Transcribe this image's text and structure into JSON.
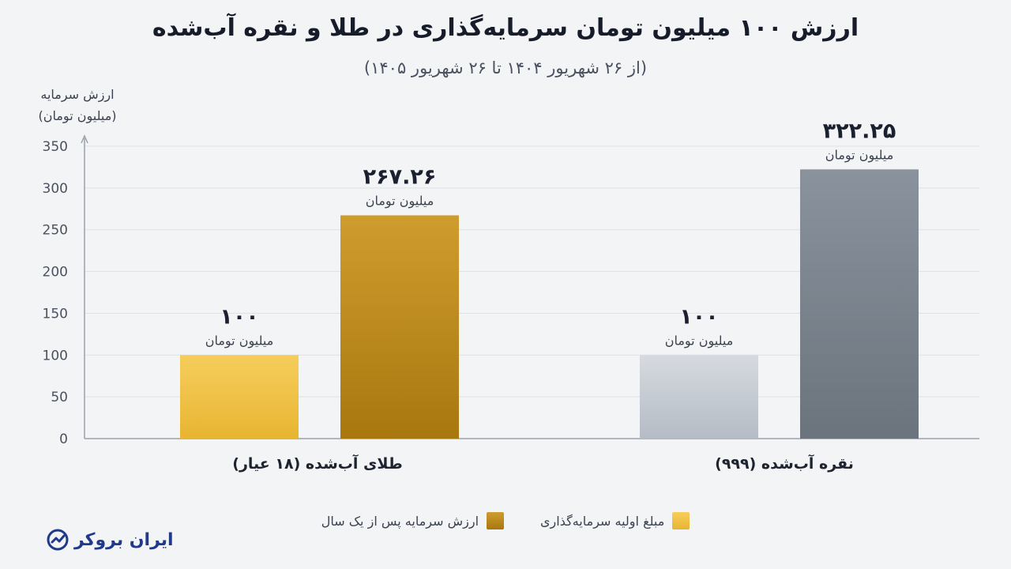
{
  "title": "ارزش ۱۰۰ میلیون تومان سرمایه‌گذاری در طلا و نقره آب‌شده",
  "subtitle": "(از ۲۶ شهریور ۱۴۰۴ تا ۲۶ شهریور ۱۴۰۵)",
  "brand": {
    "name": "ایران بروکر",
    "icon": "chart-check-icon"
  },
  "chart_data": {
    "type": "bar",
    "ylabel": [
      "ارزش سرمایه",
      "(میلیون تومان)"
    ],
    "ylim": [
      0,
      350
    ],
    "yticks": [
      "0",
      "50",
      "100",
      "150",
      "200",
      "250",
      "300",
      "350"
    ],
    "grid": true,
    "legend_position": "bottom",
    "categories": [
      "طلای آب‌شده (۱۸ عیار)",
      "نقره آب‌شده (۹۹۹)"
    ],
    "series": [
      {
        "name": "مبلغ اولیه سرمایه‌گذاری",
        "values": [
          100,
          100
        ],
        "value_labels": [
          "۱۰۰",
          "۱۰۰"
        ],
        "unit_label": "میلیون تومان"
      },
      {
        "name": "ارزش سرمایه پس از یک سال",
        "values": [
          267.26,
          322.25
        ],
        "value_labels": [
          "۲۶۷.۲۶",
          "۳۲۲.۲۵"
        ],
        "unit_label": "میلیون تومان"
      }
    ],
    "colors": {
      "gold_initial": [
        "#f6cd5c",
        "#e7b532"
      ],
      "gold_after": [
        "#cf9c2e",
        "#a8780f"
      ],
      "silver_initial": [
        "#d6dae0",
        "#b5bcc5"
      ],
      "silver_after": [
        "#8a939d",
        "#6b737d"
      ]
    }
  }
}
